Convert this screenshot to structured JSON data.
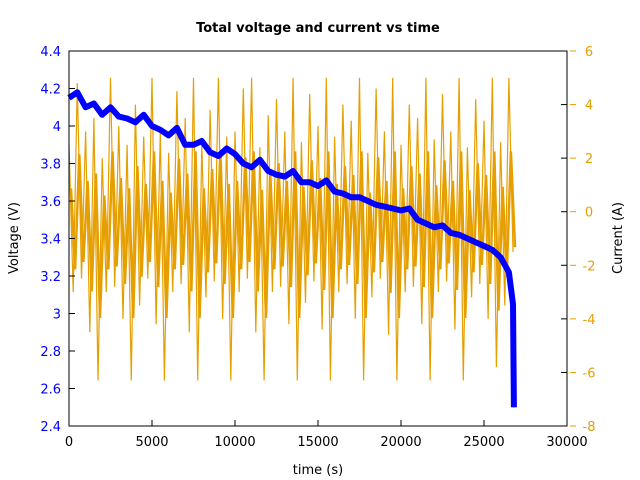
{
  "chart_data": {
    "type": "line",
    "title": "Total voltage and current vs time",
    "xlabel": "time (s)",
    "ylabel": "Voltage (V)",
    "y2label": "Current (A)",
    "xlim": [
      0,
      30000
    ],
    "ylim": [
      2.4,
      4.4
    ],
    "y2lim": [
      -8,
      6
    ],
    "xticks": [
      0,
      5000,
      10000,
      15000,
      20000,
      25000,
      30000
    ],
    "yticks": [
      "2.4",
      "2.6",
      "2.8",
      "3",
      "3.2",
      "3.4",
      "3.6",
      "3.8",
      "4",
      "4.2",
      "4.4"
    ],
    "y2ticks": [
      "-8",
      "-6",
      "-4",
      "-2",
      "0",
      "2",
      "4",
      "6"
    ],
    "grid": false,
    "colors": {
      "voltage": "#0000ff",
      "current": "#e69f00",
      "left_axis_text": "#0000ff",
      "right_axis_text": "#e69f00"
    },
    "series": [
      {
        "axis": "left",
        "x": [
          0,
          500,
          1000,
          1500,
          2000,
          2500,
          3000,
          3500,
          4000,
          4500,
          5000,
          5500,
          6000,
          6500,
          7000,
          7500,
          8000,
          8500,
          9000,
          9500,
          10000,
          10500,
          11000,
          11500,
          12000,
          12500,
          13000,
          13500,
          14000,
          14500,
          15000,
          15500,
          16000,
          16500,
          17000,
          17500,
          18000,
          18500,
          19000,
          19500,
          20000,
          20500,
          21000,
          21500,
          22000,
          22500,
          23000,
          23500,
          24000,
          24500,
          25000,
          25500,
          26000,
          26500,
          26750,
          26800
        ],
        "y": [
          4.15,
          4.18,
          4.1,
          4.12,
          4.06,
          4.1,
          4.05,
          4.04,
          4.02,
          4.06,
          4.0,
          3.98,
          3.95,
          3.99,
          3.9,
          3.9,
          3.92,
          3.86,
          3.84,
          3.88,
          3.85,
          3.8,
          3.78,
          3.82,
          3.76,
          3.74,
          3.73,
          3.76,
          3.7,
          3.7,
          3.68,
          3.71,
          3.65,
          3.64,
          3.62,
          3.62,
          3.6,
          3.58,
          3.57,
          3.56,
          3.55,
          3.56,
          3.5,
          3.48,
          3.46,
          3.47,
          3.43,
          3.42,
          3.4,
          3.38,
          3.36,
          3.34,
          3.3,
          3.22,
          3.05,
          2.5
        ]
      },
      {
        "axis": "right",
        "x_step": 250,
        "y": [
          2.5,
          -3,
          4.8,
          -2.5,
          3,
          -4.5,
          3.5,
          -6.3,
          2,
          -3,
          5,
          -2.8,
          3.2,
          -4,
          2.5,
          -6.3,
          4,
          -3.5,
          2.8,
          -2.5,
          5,
          -4.2,
          3,
          -6.3,
          2.2,
          -3,
          4.5,
          -2.7,
          3.5,
          -4.5,
          5,
          -6.3,
          2.5,
          -3.2,
          3.8,
          -2.6,
          5,
          -4,
          2.8,
          -6.3,
          3,
          -3,
          4.6,
          -2.5,
          5,
          -4.5,
          2.4,
          -6.3,
          3.6,
          -3,
          4.2,
          -2.8,
          3,
          -4.2,
          5,
          -6.3,
          2.6,
          -3.4,
          4.4,
          -2.6,
          3.2,
          -4.4,
          5,
          -6.3,
          2.8,
          -3,
          4,
          -2.7,
          3.4,
          -4,
          5,
          -6.3,
          2.2,
          -3.2,
          4.6,
          -2.5,
          3,
          -4.6,
          5,
          -6.3,
          2.5,
          -3,
          4,
          -2.8,
          3.5,
          -4.2,
          5,
          -6.3,
          2.7,
          -3,
          4.4,
          -2.6,
          3,
          -4.4,
          5,
          -6.3,
          2.4,
          -3.2,
          4.2,
          -2.7,
          3.4,
          -4,
          5,
          -5.8,
          2.6,
          -3.5,
          5,
          -1.5
        ]
      }
    ]
  }
}
